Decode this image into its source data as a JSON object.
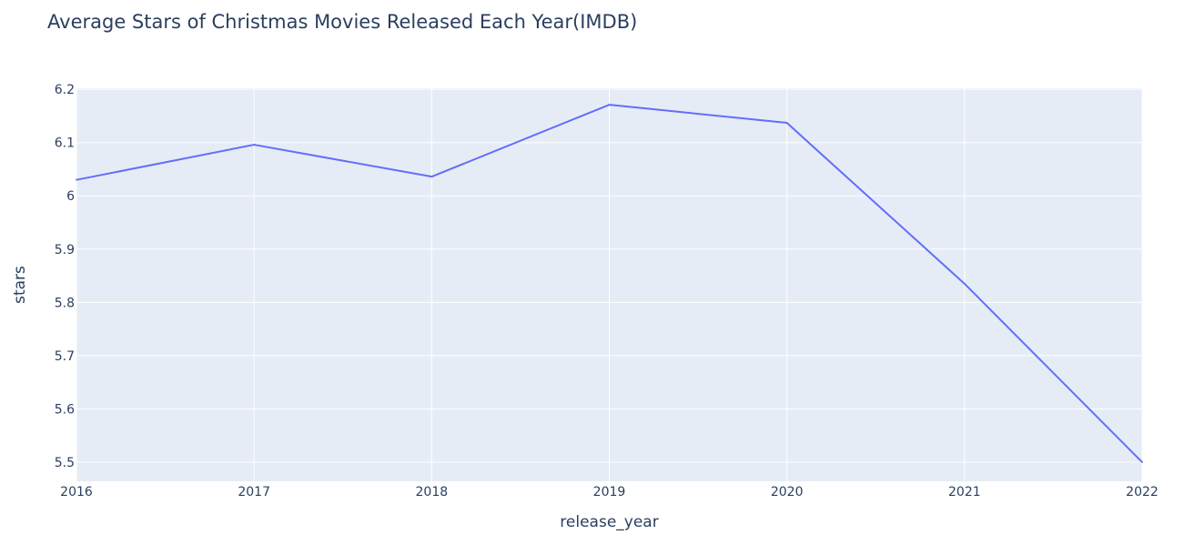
{
  "chart_data": {
    "type": "line",
    "title": "Average Stars of Christmas Movies Released Each Year(IMDB)",
    "xlabel": "release_year",
    "ylabel": "stars",
    "x": [
      2016,
      2017,
      2018,
      2019,
      2020,
      2021,
      2022
    ],
    "series": [
      {
        "values": [
          6.03,
          6.096,
          6.036,
          6.171,
          6.137,
          5.835,
          5.5
        ]
      }
    ],
    "xlim": [
      2016,
      2022
    ],
    "ylim": [
      5.464,
      6.202
    ],
    "x_ticks": [
      "2016",
      "2017",
      "2018",
      "2019",
      "2020",
      "2021",
      "2022"
    ],
    "y_ticks": [
      {
        "value": 5.5,
        "label": "5.5"
      },
      {
        "value": 5.6,
        "label": "5.6"
      },
      {
        "value": 5.7,
        "label": "5.7"
      },
      {
        "value": 5.8,
        "label": "5.8"
      },
      {
        "value": 5.9,
        "label": "5.9"
      },
      {
        "value": 6.0,
        "label": "6"
      },
      {
        "value": 6.1,
        "label": "6.1"
      },
      {
        "value": 6.2,
        "label": "6.2"
      }
    ],
    "grid": true,
    "legend": "none",
    "colors": {
      "line": "#636efa",
      "plot_bg": "#e5ecf6",
      "grid": "#ffffff",
      "text": "#2a3f5f"
    }
  }
}
